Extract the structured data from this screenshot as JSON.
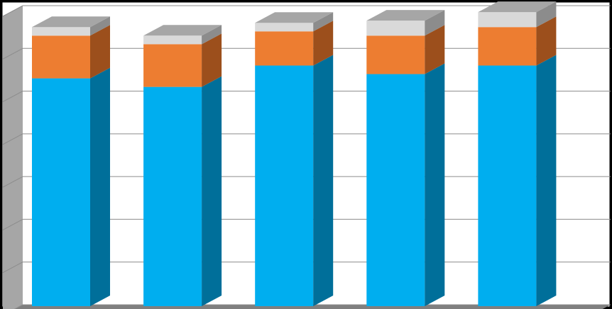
{
  "chart_data": {
    "type": "bar",
    "stacked": true,
    "three_d": true,
    "grid": true,
    "legend": "none",
    "title": "",
    "xlabel": "",
    "ylabel": "",
    "categories": [
      "",
      "",
      "",
      "",
      ""
    ],
    "ylim": [
      0,
      7
    ],
    "series": [
      {
        "values": [
          5.0,
          4.8,
          5.3,
          5.1,
          5.3
        ]
      },
      {
        "values": [
          1.0,
          1.0,
          0.8,
          0.9,
          0.9
        ]
      },
      {
        "values": [
          0.2,
          0.2,
          0.2,
          0.35,
          0.35
        ]
      }
    ],
    "colors": {
      "series_front": [
        "#00AEEF",
        "#ED7D31",
        "#D9D9D9"
      ],
      "series_side": [
        "#006F9A",
        "#9C4F1C",
        "#8C8C8C"
      ],
      "series_top": [
        "#6FD3F7",
        "#F4A36C",
        "#A6A6A6"
      ],
      "background": "#FFFFFF",
      "frame": "#000000",
      "gridline": "#8C8C8C",
      "wall": "#A6A6A6",
      "floor": "#7F7F7F"
    }
  }
}
